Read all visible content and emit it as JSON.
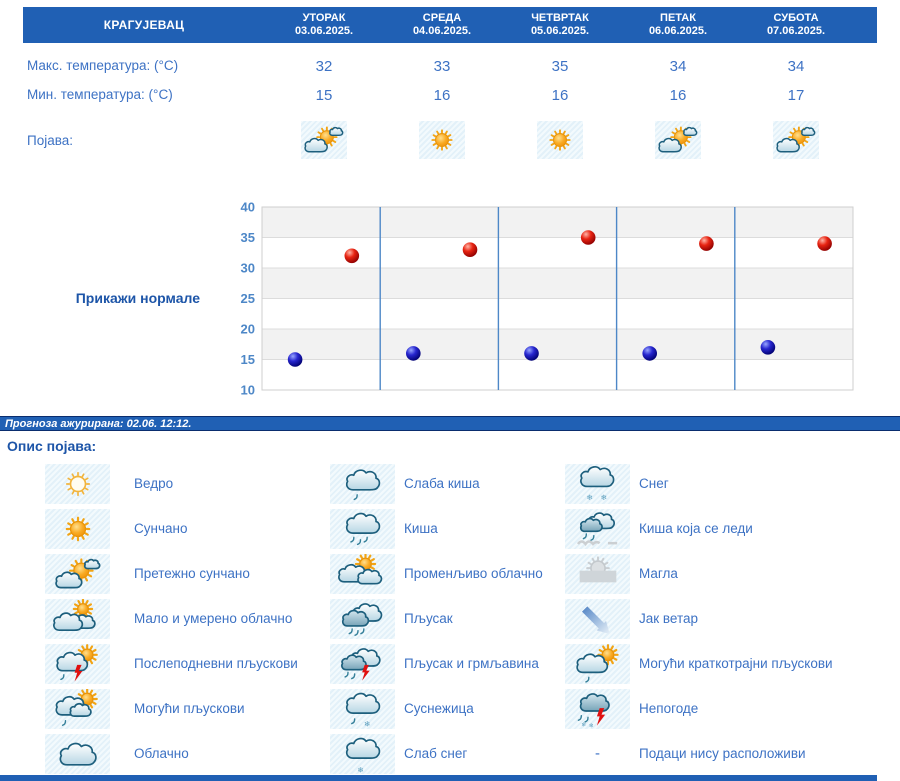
{
  "colors": {
    "header_blue": "#2060b4",
    "text_blue": "#3d72c4",
    "title_blue": "#1d55a8",
    "axis_blue": "#4d87c7",
    "max_dot": "#cc1111",
    "min_dot": "#2222cc",
    "icon_cell_bg": "#e3f1f9"
  },
  "table": {
    "city": "КРАГУЈЕВАЦ",
    "row_labels": {
      "max": "Макс. температура: (°C)",
      "min": "Мин. температура: (°C)",
      "phenomenon": "Појава:"
    },
    "days": [
      {
        "name": "УТОРАК",
        "date": "03.06.2025.",
        "max": "32",
        "min": "15",
        "icon": "pretezno-suncano"
      },
      {
        "name": "СРЕДА",
        "date": "04.06.2025.",
        "max": "33",
        "min": "16",
        "icon": "suncano"
      },
      {
        "name": "ЧЕТВРТАК",
        "date": "05.06.2025.",
        "max": "35",
        "min": "16",
        "icon": "suncano"
      },
      {
        "name": "ПЕТАК",
        "date": "06.06.2025.",
        "max": "34",
        "min": "16",
        "icon": "pretezno-suncano"
      },
      {
        "name": "СУБОТА",
        "date": "07.06.2025.",
        "max": "34",
        "min": "17",
        "icon": "pretezno-suncano"
      }
    ]
  },
  "normals_link": "Прикажи нормале",
  "chart_data": {
    "type": "scatter",
    "categories": [
      "03.06.2025.",
      "04.06.2025.",
      "05.06.2025.",
      "06.06.2025.",
      "07.06.2025."
    ],
    "series": [
      {
        "name": "Макс. температура (°C)",
        "color": "#cc1111",
        "values": [
          32,
          33,
          35,
          34,
          34
        ]
      },
      {
        "name": "Мин. температура (°C)",
        "color": "#2222cc",
        "values": [
          15,
          16,
          16,
          16,
          17
        ]
      }
    ],
    "ylim": [
      10,
      40
    ],
    "ytick_step": 5,
    "grid": true,
    "band_fill": "#f2f2f2",
    "separator_color": "#4d87c7",
    "x_offsets": [
      0.76,
      0.28
    ],
    "legend_position": "none",
    "title": ""
  },
  "update_bar": {
    "text": "Прогноза ажурирана:  02.06. 12:12."
  },
  "legend": {
    "title": "Опис појава:",
    "no_data_symbol": "-",
    "columns": [
      [
        {
          "icon": "vedro",
          "label": "Ведро"
        },
        {
          "icon": "suncano",
          "label": "Сунчано"
        },
        {
          "icon": "pretezno-suncano",
          "label": "Претежно сунчано"
        },
        {
          "icon": "malo-umereno",
          "label": "Мало и умерено облачно"
        },
        {
          "icon": "posle-pljuskovi",
          "label": "Послеподневни пљускови"
        },
        {
          "icon": "moguci-pljuskovi",
          "label": "Могући пљускови"
        },
        {
          "icon": "oblacno",
          "label": "Облачно"
        }
      ],
      [
        {
          "icon": "slaba-kisa",
          "label": "Слаба киша"
        },
        {
          "icon": "kisa",
          "label": "Киша"
        },
        {
          "icon": "promenljivo",
          "label": "Променљиво облачно"
        },
        {
          "icon": "pljusak",
          "label": "Пљусак"
        },
        {
          "icon": "pljusak-grmljavina",
          "label": "Пљусак и грмљавина"
        },
        {
          "icon": "susnezica",
          "label": "Суснежица"
        },
        {
          "icon": "slab-sneg",
          "label": "Слаб снег"
        }
      ],
      [
        {
          "icon": "sneg",
          "label": "Снег"
        },
        {
          "icon": "ledena-kisa",
          "label": "Киша која се леди"
        },
        {
          "icon": "magla",
          "label": "Магла"
        },
        {
          "icon": "jak-vetar",
          "label": "Јак ветар"
        },
        {
          "icon": "moguci-kratko",
          "label": "Могући краткотрајни пљускови"
        },
        {
          "icon": "nepogode",
          "label": "Непогоде"
        },
        {
          "icon": "nodata",
          "label": "Подаци нису расположиви"
        }
      ]
    ]
  }
}
